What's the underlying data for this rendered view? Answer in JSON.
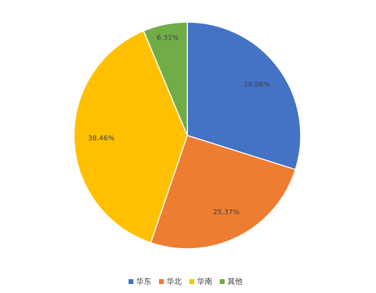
{
  "chart_data": {
    "type": "pie",
    "categories": [
      "华东",
      "华北",
      "华南",
      "其他"
    ],
    "values": [
      29.86,
      25.37,
      38.46,
      6.31
    ],
    "labels": [
      "29.86%",
      "25.37%",
      "38.46%",
      "6.31%"
    ],
    "colors": [
      "#4472C4",
      "#ED7D31",
      "#FFC000",
      "#70AD47"
    ],
    "start_angle": "12 o'clock",
    "direction": "clockwise",
    "legend_position": "bottom"
  }
}
